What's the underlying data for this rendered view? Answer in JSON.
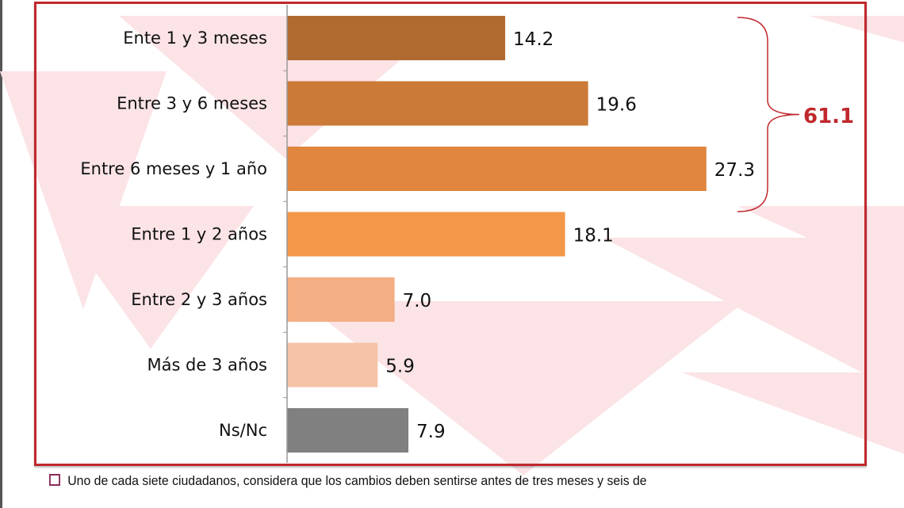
{
  "chart_data": {
    "type": "bar",
    "orientation": "horizontal",
    "categories": [
      "Ente 1 y 3 meses",
      "Entre 3 y 6 meses",
      "Entre 6 meses y 1 año",
      "Entre 1 y 2 años",
      "Entre 2 y 3 años",
      "Más de 3 años",
      "Ns/Nc"
    ],
    "values": [
      14.2,
      19.6,
      27.3,
      18.1,
      7.0,
      5.9,
      7.9
    ],
    "value_labels": [
      "14.2",
      "19.6",
      "27.3",
      "18.1",
      "7.0",
      "5.9",
      "7.9"
    ],
    "colors": [
      "#b06a30",
      "#cb7a38",
      "#e0863e",
      "#f29848",
      "#f4ae84",
      "#f6c3a8",
      "#808080"
    ],
    "xlim": [
      0,
      30
    ],
    "grid": false,
    "annotation": {
      "text": "61.1",
      "color": "#c0282d",
      "spans_categories": [
        0,
        2
      ]
    }
  },
  "footnote": "Uno de cada siete ciudadanos, considera que los cambios deben sentirse antes de tres meses y seis de"
}
